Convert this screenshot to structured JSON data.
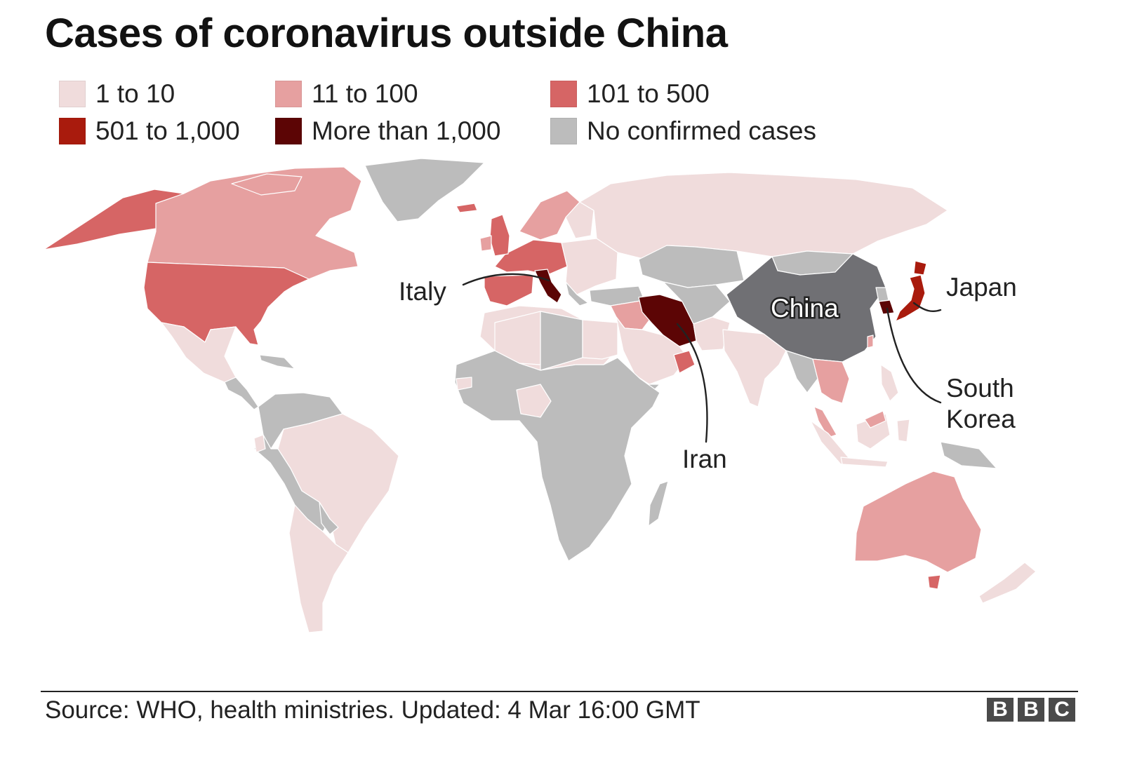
{
  "title": "Cases of coronavirus outside China",
  "legend": [
    {
      "label": "1 to 10",
      "color": "#f0dcdc"
    },
    {
      "label": "11 to 100",
      "color": "#e6a0a0"
    },
    {
      "label": "101 to 500",
      "color": "#d66565"
    },
    {
      "label": "501 to 1,000",
      "color": "#a91b0d"
    },
    {
      "label": "More than 1,000",
      "color": "#5c0505"
    },
    {
      "label": "No confirmed cases",
      "color": "#bcbcbc"
    }
  ],
  "labels": {
    "italy": "Italy",
    "iran": "Iran",
    "china": "China",
    "japan": "Japan",
    "south_korea_line1": "South",
    "south_korea_line2": "Korea"
  },
  "colors": {
    "china": "#707074",
    "border": "#ffffff",
    "leader_line": "#222222"
  },
  "source": "Source: WHO, health ministries. Updated: 4 Mar 16:00 GMT",
  "logo": {
    "letters": [
      "B",
      "B",
      "C"
    ]
  }
}
